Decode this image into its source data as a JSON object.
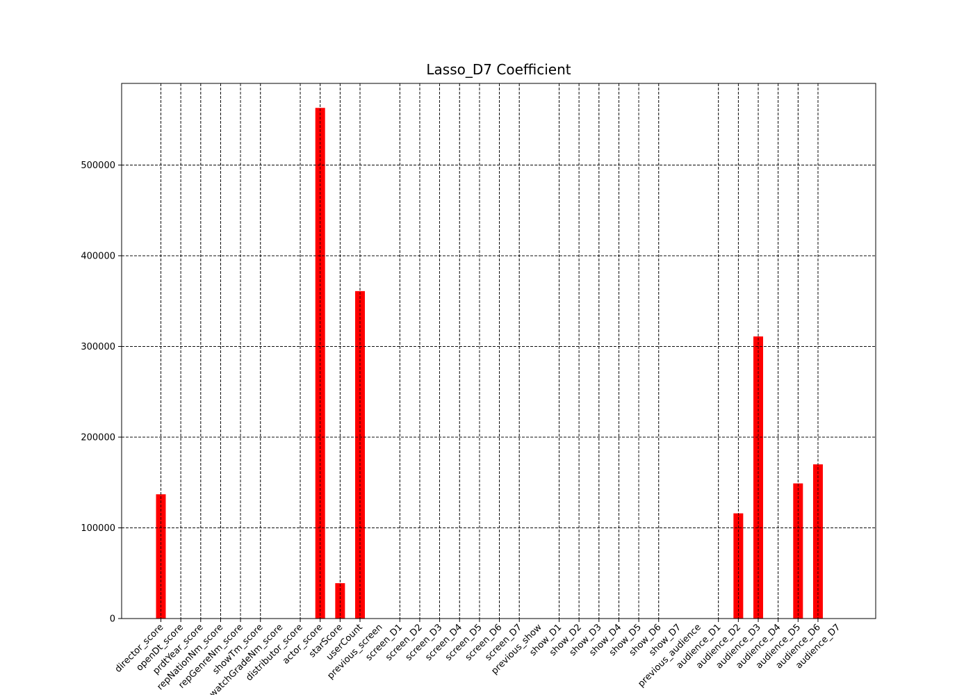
{
  "chart_data": {
    "type": "bar",
    "title": "Lasso_D7 Coefficient",
    "xlabel": "",
    "ylabel": "",
    "categories": [
      "director_score",
      "openDt_score",
      "prdtYear_score",
      "repNationNm_score",
      "repGenreNm_score",
      "showTm_score",
      "watchGradeNm_score",
      "distributor_score",
      "actor_score",
      "starScore",
      "userCount",
      "previous_screen",
      "screen_D1",
      "screen_D2",
      "screen_D3",
      "screen_D4",
      "screen_D5",
      "screen_D6",
      "screen_D7",
      "previous_show",
      "show_D1",
      "show_D2",
      "show_D3",
      "show_D4",
      "show_D5",
      "show_D6",
      "show_D7",
      "previous_audience",
      "audience_D1",
      "audience_D2",
      "audience_D3",
      "audience_D4",
      "audience_D5",
      "audience_D6",
      "audience_D7"
    ],
    "x_positions": [
      0,
      1,
      2,
      3,
      4,
      5,
      6,
      7,
      8,
      9,
      10,
      11,
      12,
      13,
      14,
      15,
      16,
      17,
      18,
      19,
      20,
      21,
      22,
      23,
      24,
      25,
      26,
      27,
      28,
      29,
      30,
      31,
      32,
      33,
      34
    ],
    "x_ticks": [
      0,
      1,
      2,
      3,
      4,
      5,
      7,
      8,
      9,
      10,
      12,
      13,
      14,
      15,
      16,
      17,
      18,
      20,
      21,
      22,
      23,
      24,
      25,
      28,
      29,
      30,
      31,
      32,
      33
    ],
    "bar_positions": [
      0,
      8,
      9,
      10,
      29,
      30,
      32,
      33
    ],
    "bar_values": [
      137000,
      563000,
      39000,
      361000,
      116000,
      311000,
      149000,
      170000
    ],
    "ylim": [
      0,
      590000
    ],
    "yticks": [
      0,
      100000,
      200000,
      300000,
      400000,
      500000
    ],
    "ytick_labels": [
      "0",
      "100000",
      "200000",
      "300000",
      "400000",
      "500000"
    ],
    "grid": true,
    "bar_color": "#ff0000"
  }
}
